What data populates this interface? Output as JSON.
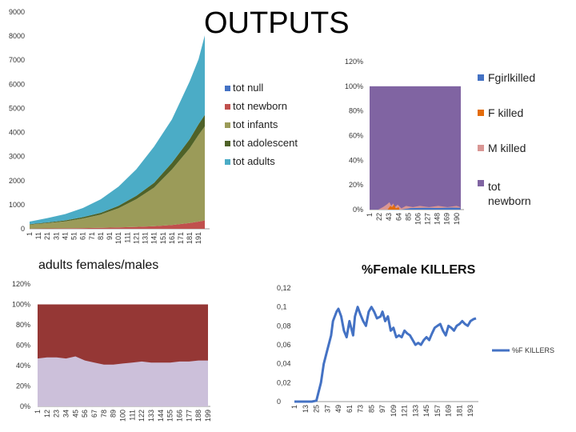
{
  "title": "OUTPUTS",
  "chart_data": [
    {
      "id": "population",
      "type": "area",
      "stacked": true,
      "title": "",
      "ylim": [
        0,
        9000
      ],
      "yticks": [
        "0",
        "1000",
        "2000",
        "3000",
        "4000",
        "5000",
        "6000",
        "7000",
        "8000",
        "9000"
      ],
      "xticks": [
        "1",
        "11",
        "21",
        "31",
        "41",
        "51",
        "61",
        "71",
        "81",
        "91",
        "101",
        "111",
        "121",
        "131",
        "141",
        "151",
        "161",
        "171",
        "181",
        "191"
      ],
      "x": [
        1,
        21,
        41,
        61,
        81,
        101,
        121,
        141,
        161,
        181,
        191,
        198
      ],
      "series": [
        {
          "name": "tot null",
          "color": "#4472C4",
          "values": [
            0,
            0,
            0,
            0,
            0,
            0,
            0,
            0,
            0,
            0,
            0,
            0
          ]
        },
        {
          "name": "tot newborn",
          "color": "#C0504D",
          "values": [
            10,
            15,
            20,
            30,
            40,
            55,
            80,
            110,
            160,
            240,
            300,
            350
          ]
        },
        {
          "name": "tot infants",
          "color": "#9B9B59",
          "values": [
            160,
            220,
            290,
            400,
            550,
            800,
            1150,
            1600,
            2300,
            3100,
            3600,
            3900
          ]
        },
        {
          "name": "tot adolescent",
          "color": "#4F6228",
          "values": [
            20,
            30,
            40,
            55,
            75,
            100,
            140,
            200,
            280,
            380,
            440,
            480
          ]
        },
        {
          "name": "tot adults",
          "color": "#4BACC6",
          "values": [
            110,
            180,
            260,
            380,
            560,
            800,
            1100,
            1500,
            1800,
            2400,
            2700,
            3300
          ]
        }
      ]
    },
    {
      "id": "killed",
      "type": "area",
      "stacked": true,
      "percent": true,
      "yticks": [
        "0%",
        "20%",
        "40%",
        "60%",
        "80%",
        "100%",
        "120%"
      ],
      "xticks": [
        "1",
        "22",
        "43",
        "64",
        "85",
        "106",
        "127",
        "148",
        "169",
        "190"
      ],
      "series": [
        {
          "name": "Fgirlkilled",
          "color": "#4472C4"
        },
        {
          "name": "F killed",
          "color": "#E36C0A"
        },
        {
          "name": "M killed",
          "color": "#D99694"
        },
        {
          "name": "tot newborn",
          "color": "#8064A2"
        }
      ],
      "note": "tot newborn fills nearly 100% of each period; killed shares stay below ~6%"
    },
    {
      "id": "sexratio",
      "type": "area",
      "stacked": true,
      "percent": true,
      "title": "adults females/males",
      "yticks": [
        "0%",
        "20%",
        "40%",
        "60%",
        "80%",
        "100%",
        "120%"
      ],
      "xticks": [
        "1",
        "12",
        "23",
        "34",
        "45",
        "56",
        "67",
        "78",
        "89",
        "100",
        "111",
        "122",
        "133",
        "144",
        "155",
        "166",
        "177",
        "188",
        "199"
      ],
      "x": [
        1,
        12,
        23,
        34,
        45,
        56,
        67,
        78,
        89,
        100,
        111,
        122,
        133,
        144,
        155,
        166,
        177,
        188,
        199
      ],
      "series": [
        {
          "name": "females",
          "color": "#CCC0DA",
          "values": [
            47,
            48,
            48,
            47,
            49,
            45,
            43,
            41,
            41,
            42,
            43,
            44,
            43,
            43,
            43,
            44,
            44,
            45,
            45
          ]
        },
        {
          "name": "males",
          "color": "#953735",
          "values": [
            53,
            52,
            52,
            53,
            51,
            55,
            57,
            59,
            59,
            58,
            57,
            56,
            57,
            57,
            57,
            56,
            56,
            55,
            55
          ]
        }
      ]
    },
    {
      "id": "female-killers",
      "type": "line",
      "title": "%Female  KILLERS",
      "legend": "%F KILLERS",
      "ylim": [
        0,
        0.12
      ],
      "yticks": [
        "0",
        "0,02",
        "0,04",
        "0,06",
        "0,08",
        "0,1",
        "0,12"
      ],
      "xticks": [
        "1",
        "13",
        "25",
        "37",
        "49",
        "61",
        "73",
        "85",
        "97",
        "109",
        "121",
        "133",
        "145",
        "157",
        "169",
        "181",
        "193"
      ],
      "x": [
        1,
        13,
        20,
        25,
        30,
        33,
        37,
        41,
        43,
        47,
        49,
        52,
        55,
        58,
        61,
        65,
        67,
        70,
        73,
        76,
        79,
        82,
        85,
        88,
        91,
        95,
        97,
        100,
        103,
        106,
        109,
        112,
        115,
        118,
        121,
        124,
        127,
        130,
        133,
        136,
        139,
        142,
        145,
        148,
        151,
        154,
        157,
        160,
        163,
        166,
        169,
        172,
        175,
        178,
        181,
        184,
        187,
        190,
        193,
        196,
        199
      ],
      "values": [
        0,
        0,
        0,
        0.001,
        0.02,
        0.04,
        0.055,
        0.07,
        0.085,
        0.095,
        0.098,
        0.09,
        0.075,
        0.068,
        0.085,
        0.07,
        0.09,
        0.1,
        0.092,
        0.085,
        0.08,
        0.095,
        0.1,
        0.095,
        0.088,
        0.09,
        0.095,
        0.085,
        0.09,
        0.075,
        0.078,
        0.068,
        0.07,
        0.068,
        0.075,
        0.072,
        0.07,
        0.065,
        0.06,
        0.062,
        0.06,
        0.065,
        0.068,
        0.065,
        0.072,
        0.078,
        0.08,
        0.082,
        0.075,
        0.07,
        0.08,
        0.078,
        0.075,
        0.08,
        0.082,
        0.085,
        0.082,
        0.08,
        0.085,
        0.087,
        0.088
      ]
    }
  ]
}
